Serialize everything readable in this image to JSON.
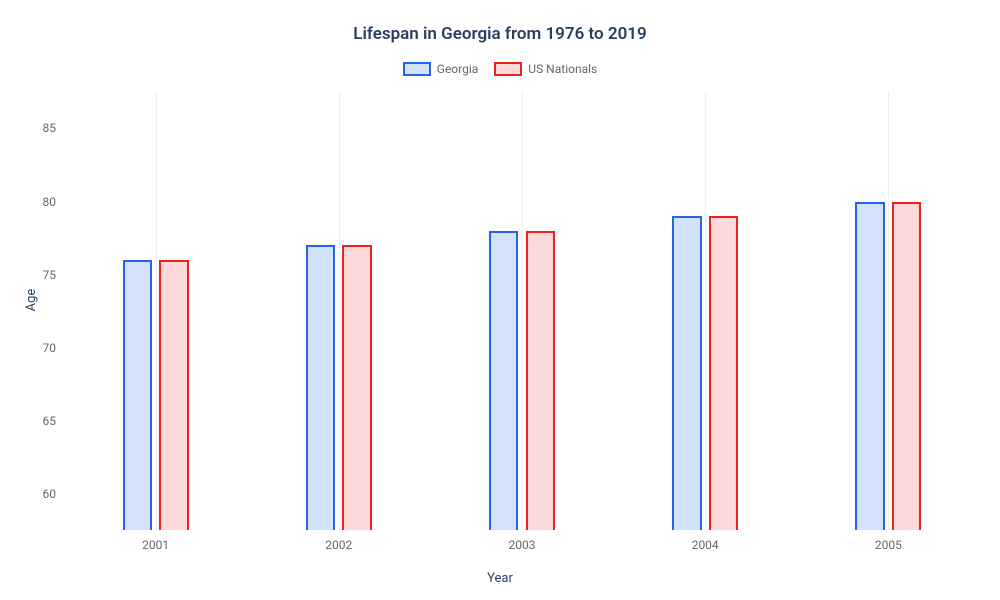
{
  "chart": {
    "type": "bar",
    "title": "Lifespan in Georgia from 1976 to 2019",
    "title_fontsize": 17,
    "title_color": "#2a3f5f",
    "xlabel": "Year",
    "ylabel": "Age",
    "axis_label_fontsize": 13,
    "axis_label_color": "#2a3f5f",
    "tick_color": "#666666",
    "tick_fontsize": 12,
    "background_color": "#ffffff",
    "grid_color": "#eeeeee",
    "grid_width": 1,
    "ylim": [
      57.5,
      87.5
    ],
    "yticks": [
      60,
      65,
      70,
      75,
      80,
      85
    ],
    "categories": [
      "2001",
      "2002",
      "2003",
      "2004",
      "2005"
    ],
    "bar_width": 0.032,
    "group_bar_gap": 0.008,
    "series": [
      {
        "label": "Georgia",
        "color_border": "#2563eb",
        "color_fill": "#d4e1fb",
        "values": [
          76,
          77,
          78,
          79,
          80
        ]
      },
      {
        "label": "US Nationals",
        "color_border": "#ef2020",
        "color_fill": "#fcdada",
        "values": [
          76,
          77,
          78,
          79,
          80
        ]
      }
    ],
    "legend": {
      "position": "top-center",
      "swatch_width": 28,
      "swatch_height": 14,
      "label_color": "#666666"
    }
  }
}
